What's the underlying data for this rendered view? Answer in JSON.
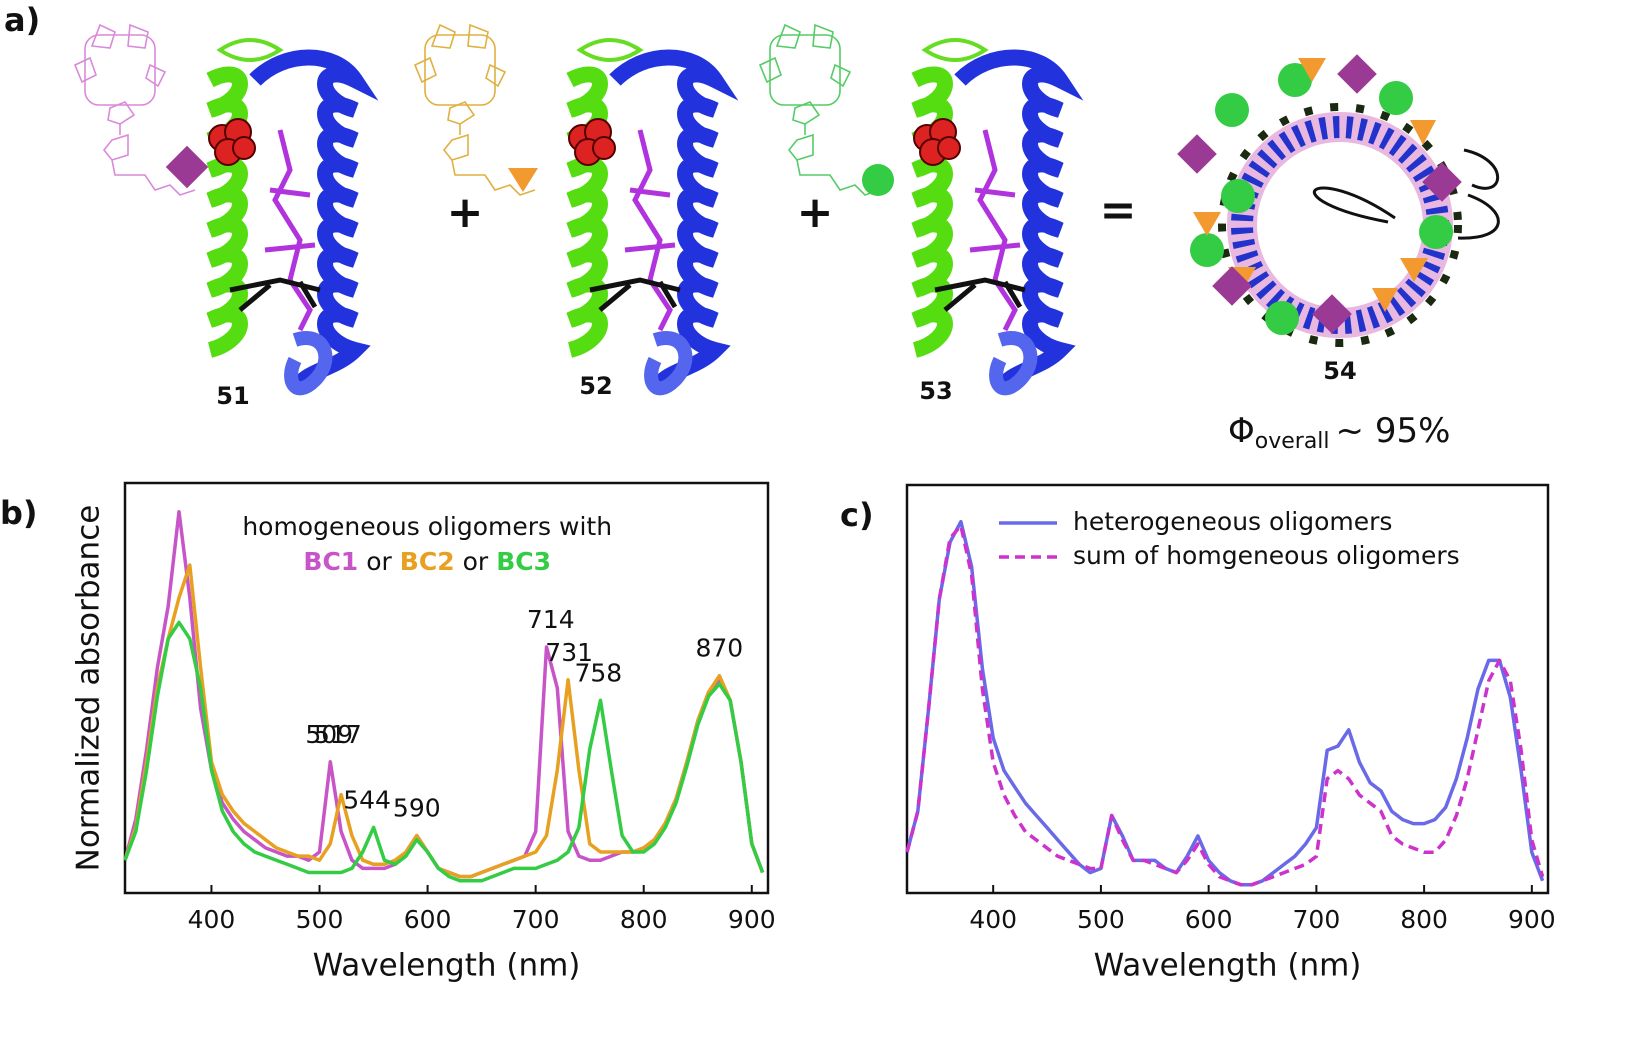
{
  "panel_a": {
    "label": "a)",
    "compounds": [
      "51",
      "52",
      "53",
      "54"
    ],
    "operators": [
      "+",
      "+",
      "="
    ],
    "quantum_yield": {
      "symbol": "Φ",
      "subscript": "overall",
      "text": "~ 95%"
    }
  },
  "chart_data": [
    {
      "type": "line",
      "panel_label": "b)",
      "xlabel": "Wavelength (nm)",
      "ylabel": "Normalized absorbance",
      "xlim": [
        320,
        915
      ],
      "xticks": [
        400,
        500,
        600,
        700,
        800,
        900
      ],
      "ylim": [
        0,
        1
      ],
      "legend_title": "homogeneous oligomers with",
      "legend_separator": "or",
      "peak_labels": [
        509,
        517,
        544,
        590,
        714,
        731,
        758,
        870
      ],
      "x": [
        320,
        330,
        340,
        350,
        360,
        370,
        380,
        390,
        400,
        410,
        420,
        430,
        440,
        450,
        460,
        470,
        480,
        490,
        500,
        510,
        520,
        530,
        540,
        550,
        560,
        570,
        580,
        590,
        600,
        610,
        620,
        630,
        640,
        650,
        660,
        670,
        680,
        690,
        700,
        710,
        720,
        730,
        740,
        750,
        760,
        770,
        780,
        790,
        800,
        810,
        820,
        830,
        840,
        850,
        860,
        870,
        880,
        890,
        900,
        910
      ],
      "series": [
        {
          "name": "BC1",
          "color": "#c855c8",
          "line_style": "solid",
          "values": [
            0.08,
            0.18,
            0.35,
            0.55,
            0.7,
            0.93,
            0.72,
            0.45,
            0.3,
            0.22,
            0.18,
            0.15,
            0.13,
            0.11,
            0.1,
            0.09,
            0.09,
            0.08,
            0.1,
            0.32,
            0.15,
            0.08,
            0.06,
            0.06,
            0.06,
            0.07,
            0.1,
            0.14,
            0.1,
            0.06,
            0.05,
            0.04,
            0.04,
            0.05,
            0.06,
            0.07,
            0.08,
            0.09,
            0.15,
            0.6,
            0.5,
            0.15,
            0.09,
            0.08,
            0.08,
            0.09,
            0.1,
            0.1,
            0.11,
            0.13,
            0.17,
            0.23,
            0.32,
            0.42,
            0.49,
            0.52,
            0.47,
            0.32,
            0.12,
            0.05
          ]
        },
        {
          "name": "BC2",
          "color": "#e8a020",
          "line_style": "solid",
          "values": [
            0.08,
            0.16,
            0.32,
            0.5,
            0.62,
            0.72,
            0.8,
            0.55,
            0.32,
            0.24,
            0.2,
            0.17,
            0.15,
            0.13,
            0.11,
            0.1,
            0.09,
            0.09,
            0.08,
            0.12,
            0.24,
            0.14,
            0.08,
            0.07,
            0.07,
            0.08,
            0.1,
            0.14,
            0.1,
            0.06,
            0.05,
            0.04,
            0.04,
            0.05,
            0.06,
            0.07,
            0.08,
            0.09,
            0.1,
            0.14,
            0.3,
            0.52,
            0.3,
            0.12,
            0.1,
            0.1,
            0.1,
            0.1,
            0.11,
            0.13,
            0.17,
            0.23,
            0.32,
            0.42,
            0.49,
            0.53,
            0.47,
            0.32,
            0.12,
            0.05
          ]
        },
        {
          "name": "BC3",
          "color": "#33cc44",
          "line_style": "solid",
          "values": [
            0.08,
            0.15,
            0.3,
            0.48,
            0.62,
            0.66,
            0.62,
            0.5,
            0.3,
            0.2,
            0.15,
            0.12,
            0.1,
            0.09,
            0.08,
            0.07,
            0.06,
            0.05,
            0.05,
            0.05,
            0.05,
            0.06,
            0.1,
            0.16,
            0.08,
            0.07,
            0.09,
            0.13,
            0.1,
            0.06,
            0.04,
            0.03,
            0.03,
            0.03,
            0.04,
            0.05,
            0.06,
            0.06,
            0.06,
            0.07,
            0.08,
            0.1,
            0.16,
            0.35,
            0.47,
            0.3,
            0.14,
            0.1,
            0.1,
            0.12,
            0.16,
            0.22,
            0.31,
            0.41,
            0.48,
            0.51,
            0.47,
            0.32,
            0.12,
            0.05
          ]
        }
      ]
    },
    {
      "type": "line",
      "panel_label": "c)",
      "xlabel": "Wavelength (nm)",
      "xlim": [
        320,
        915
      ],
      "xticks": [
        400,
        500,
        600,
        700,
        800,
        900
      ],
      "ylim": [
        0,
        1
      ],
      "x": [
        320,
        330,
        340,
        350,
        360,
        370,
        380,
        390,
        400,
        410,
        420,
        430,
        440,
        450,
        460,
        470,
        480,
        490,
        500,
        510,
        520,
        530,
        540,
        550,
        560,
        570,
        580,
        590,
        600,
        610,
        620,
        630,
        640,
        650,
        660,
        670,
        680,
        690,
        700,
        710,
        720,
        730,
        740,
        750,
        760,
        770,
        780,
        790,
        800,
        810,
        820,
        830,
        840,
        850,
        860,
        870,
        880,
        890,
        900,
        910
      ],
      "series": [
        {
          "name": "heterogeneous oligomers",
          "color": "#6a6ae8",
          "line_style": "solid",
          "values": [
            0.1,
            0.2,
            0.45,
            0.72,
            0.86,
            0.91,
            0.8,
            0.55,
            0.38,
            0.3,
            0.26,
            0.22,
            0.19,
            0.16,
            0.13,
            0.1,
            0.07,
            0.05,
            0.06,
            0.19,
            0.14,
            0.08,
            0.08,
            0.08,
            0.06,
            0.05,
            0.09,
            0.14,
            0.08,
            0.05,
            0.03,
            0.02,
            0.02,
            0.03,
            0.05,
            0.07,
            0.09,
            0.12,
            0.16,
            0.35,
            0.36,
            0.4,
            0.32,
            0.27,
            0.25,
            0.2,
            0.18,
            0.17,
            0.17,
            0.18,
            0.21,
            0.28,
            0.38,
            0.5,
            0.57,
            0.57,
            0.48,
            0.3,
            0.1,
            0.03
          ]
        },
        {
          "name": "sum of homgeneous oligomers",
          "color": "#cc33cc",
          "line_style": "dashed",
          "values": [
            0.1,
            0.2,
            0.45,
            0.72,
            0.87,
            0.9,
            0.78,
            0.5,
            0.32,
            0.24,
            0.19,
            0.15,
            0.13,
            0.11,
            0.09,
            0.08,
            0.07,
            0.06,
            0.06,
            0.19,
            0.13,
            0.08,
            0.08,
            0.07,
            0.06,
            0.05,
            0.08,
            0.12,
            0.07,
            0.04,
            0.03,
            0.02,
            0.02,
            0.03,
            0.04,
            0.05,
            0.06,
            0.07,
            0.09,
            0.28,
            0.3,
            0.28,
            0.24,
            0.22,
            0.2,
            0.14,
            0.12,
            0.11,
            0.1,
            0.1,
            0.13,
            0.19,
            0.28,
            0.4,
            0.52,
            0.57,
            0.52,
            0.35,
            0.13,
            0.04
          ]
        }
      ]
    }
  ]
}
